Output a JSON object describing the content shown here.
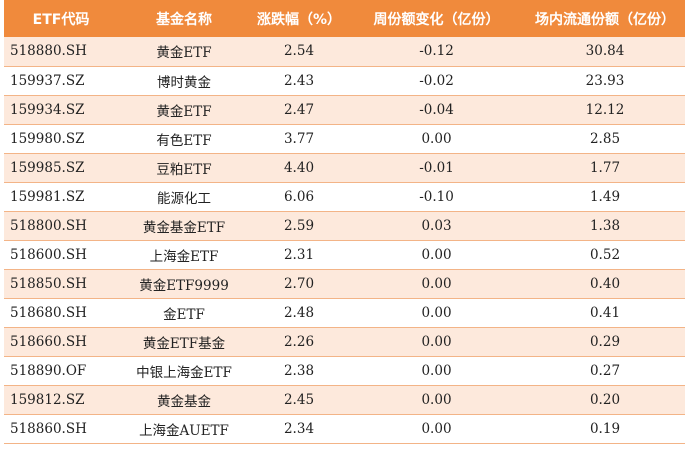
{
  "table": {
    "headers": [
      "ETF代码",
      "基金名称",
      "涨跌幅（%）",
      "周份额变化（亿份）",
      "场内流通份额（亿份）"
    ],
    "rows": [
      [
        "518880.SH",
        "黄金ETF",
        "2.54",
        "-0.12",
        "30.84"
      ],
      [
        "159937.SZ",
        "博时黄金",
        "2.43",
        "-0.02",
        "23.93"
      ],
      [
        "159934.SZ",
        "黄金ETF",
        "2.47",
        "-0.04",
        "12.12"
      ],
      [
        "159980.SZ",
        "有色ETF",
        "3.77",
        "0.00",
        "2.85"
      ],
      [
        "159985.SZ",
        "豆粕ETF",
        "4.40",
        "-0.01",
        "1.77"
      ],
      [
        "159981.SZ",
        "能源化工",
        "6.06",
        "-0.10",
        "1.49"
      ],
      [
        "518800.SH",
        "黄金基金ETF",
        "2.59",
        "0.03",
        "1.38"
      ],
      [
        "518600.SH",
        "上海金ETF",
        "2.31",
        "0.00",
        "0.52"
      ],
      [
        "518850.SH",
        "黄金ETF9999",
        "2.70",
        "0.00",
        "0.40"
      ],
      [
        "518680.SH",
        "金ETF",
        "2.48",
        "0.00",
        "0.41"
      ],
      [
        "518660.SH",
        "黄金ETF基金",
        "2.26",
        "0.00",
        "0.29"
      ],
      [
        "518890.OF",
        "中银上海金ETF",
        "2.38",
        "0.00",
        "0.27"
      ],
      [
        "159812.SZ",
        "黄金基金",
        "2.45",
        "0.00",
        "0.20"
      ],
      [
        "518860.SH",
        "上海金AUETF",
        "2.34",
        "0.00",
        "0.19"
      ]
    ]
  },
  "colors": {
    "header_bg": "#f08a3c",
    "header_text": "#ffffff",
    "stripe_bg": "#fde9dc",
    "row_border": "#f3b487"
  }
}
